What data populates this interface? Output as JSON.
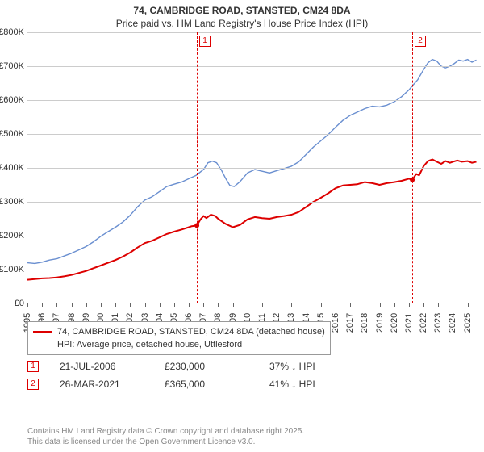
{
  "title_line1": "74, CAMBRIDGE ROAD, STANSTED, CM24 8DA",
  "title_line2": "Price paid vs. HM Land Registry's House Price Index (HPI)",
  "y_axis": {
    "min": 0,
    "max": 800000,
    "ticks": [
      0,
      100000,
      200000,
      300000,
      400000,
      500000,
      600000,
      700000,
      800000
    ],
    "labels": [
      "£0",
      "£100K",
      "£200K",
      "£300K",
      "£400K",
      "£500K",
      "£600K",
      "£700K",
      "£800K"
    ]
  },
  "x_axis": {
    "min": 1995.0,
    "max": 2025.9,
    "ticks": [
      1995,
      1996,
      1997,
      1998,
      1999,
      2000,
      2001,
      2002,
      2003,
      2004,
      2005,
      2006,
      2007,
      2008,
      2009,
      2010,
      2011,
      2012,
      2013,
      2014,
      2015,
      2016,
      2017,
      2018,
      2019,
      2020,
      2021,
      2022,
      2023,
      2024,
      2025
    ]
  },
  "grid_color": "#cccccc",
  "axis_color": "#666666",
  "series": {
    "property": {
      "label": "74, CAMBRIDGE ROAD, STANSTED, CM24 8DA (detached house)",
      "color": "#dd0000",
      "width": 2,
      "points": [
        [
          1995.0,
          70000
        ],
        [
          1995.5,
          72000
        ],
        [
          1996.0,
          74000
        ],
        [
          1996.5,
          75000
        ],
        [
          1997.0,
          77000
        ],
        [
          1997.5,
          80000
        ],
        [
          1998.0,
          84000
        ],
        [
          1998.5,
          90000
        ],
        [
          1999.0,
          96000
        ],
        [
          1999.5,
          104000
        ],
        [
          2000.0,
          112000
        ],
        [
          2000.5,
          120000
        ],
        [
          2001.0,
          128000
        ],
        [
          2001.5,
          138000
        ],
        [
          2002.0,
          150000
        ],
        [
          2002.5,
          165000
        ],
        [
          2003.0,
          178000
        ],
        [
          2003.5,
          185000
        ],
        [
          2004.0,
          195000
        ],
        [
          2004.5,
          205000
        ],
        [
          2005.0,
          212000
        ],
        [
          2005.5,
          218000
        ],
        [
          2006.0,
          225000
        ],
        [
          2006.2,
          228000
        ],
        [
          2006.55,
          230000
        ],
        [
          2006.8,
          248000
        ],
        [
          2007.0,
          258000
        ],
        [
          2007.2,
          252000
        ],
        [
          2007.5,
          262000
        ],
        [
          2007.8,
          258000
        ],
        [
          2008.0,
          250000
        ],
        [
          2008.5,
          235000
        ],
        [
          2009.0,
          225000
        ],
        [
          2009.5,
          232000
        ],
        [
          2010.0,
          248000
        ],
        [
          2010.5,
          255000
        ],
        [
          2011.0,
          252000
        ],
        [
          2011.5,
          250000
        ],
        [
          2012.0,
          255000
        ],
        [
          2012.5,
          258000
        ],
        [
          2013.0,
          262000
        ],
        [
          2013.5,
          270000
        ],
        [
          2014.0,
          285000
        ],
        [
          2014.5,
          300000
        ],
        [
          2015.0,
          312000
        ],
        [
          2015.5,
          325000
        ],
        [
          2016.0,
          340000
        ],
        [
          2016.5,
          348000
        ],
        [
          2017.0,
          350000
        ],
        [
          2017.5,
          352000
        ],
        [
          2018.0,
          358000
        ],
        [
          2018.5,
          355000
        ],
        [
          2019.0,
          350000
        ],
        [
          2019.5,
          355000
        ],
        [
          2020.0,
          358000
        ],
        [
          2020.5,
          362000
        ],
        [
          2021.0,
          368000
        ],
        [
          2021.23,
          365000
        ],
        [
          2021.5,
          382000
        ],
        [
          2021.7,
          378000
        ],
        [
          2022.0,
          405000
        ],
        [
          2022.3,
          420000
        ],
        [
          2022.6,
          425000
        ],
        [
          2022.9,
          418000
        ],
        [
          2023.2,
          412000
        ],
        [
          2023.5,
          420000
        ],
        [
          2023.8,
          415000
        ],
        [
          2024.0,
          418000
        ],
        [
          2024.3,
          422000
        ],
        [
          2024.6,
          418000
        ],
        [
          2025.0,
          420000
        ],
        [
          2025.3,
          415000
        ],
        [
          2025.6,
          418000
        ]
      ]
    },
    "hpi": {
      "label": "HPI: Average price, detached house, Uttlesford",
      "color": "#6a8fd0",
      "width": 1.4,
      "points": [
        [
          1995.0,
          120000
        ],
        [
          1995.5,
          118000
        ],
        [
          1996.0,
          122000
        ],
        [
          1996.5,
          128000
        ],
        [
          1997.0,
          132000
        ],
        [
          1997.5,
          140000
        ],
        [
          1998.0,
          148000
        ],
        [
          1998.5,
          158000
        ],
        [
          1999.0,
          168000
        ],
        [
          1999.5,
          182000
        ],
        [
          2000.0,
          198000
        ],
        [
          2000.5,
          212000
        ],
        [
          2001.0,
          225000
        ],
        [
          2001.5,
          240000
        ],
        [
          2002.0,
          260000
        ],
        [
          2002.5,
          285000
        ],
        [
          2003.0,
          305000
        ],
        [
          2003.5,
          315000
        ],
        [
          2004.0,
          330000
        ],
        [
          2004.5,
          345000
        ],
        [
          2005.0,
          352000
        ],
        [
          2005.5,
          358000
        ],
        [
          2006.0,
          368000
        ],
        [
          2006.5,
          378000
        ],
        [
          2007.0,
          395000
        ],
        [
          2007.3,
          415000
        ],
        [
          2007.6,
          420000
        ],
        [
          2007.9,
          415000
        ],
        [
          2008.2,
          395000
        ],
        [
          2008.5,
          370000
        ],
        [
          2008.8,
          348000
        ],
        [
          2009.1,
          345000
        ],
        [
          2009.5,
          360000
        ],
        [
          2010.0,
          385000
        ],
        [
          2010.5,
          395000
        ],
        [
          2011.0,
          390000
        ],
        [
          2011.5,
          385000
        ],
        [
          2012.0,
          392000
        ],
        [
          2012.5,
          398000
        ],
        [
          2013.0,
          405000
        ],
        [
          2013.5,
          418000
        ],
        [
          2014.0,
          440000
        ],
        [
          2014.5,
          462000
        ],
        [
          2015.0,
          480000
        ],
        [
          2015.5,
          498000
        ],
        [
          2016.0,
          520000
        ],
        [
          2016.5,
          540000
        ],
        [
          2017.0,
          555000
        ],
        [
          2017.5,
          565000
        ],
        [
          2018.0,
          575000
        ],
        [
          2018.5,
          582000
        ],
        [
          2019.0,
          580000
        ],
        [
          2019.5,
          585000
        ],
        [
          2020.0,
          595000
        ],
        [
          2020.5,
          610000
        ],
        [
          2021.0,
          630000
        ],
        [
          2021.3,
          645000
        ],
        [
          2021.6,
          660000
        ],
        [
          2022.0,
          690000
        ],
        [
          2022.3,
          710000
        ],
        [
          2022.6,
          720000
        ],
        [
          2022.9,
          715000
        ],
        [
          2023.2,
          700000
        ],
        [
          2023.5,
          695000
        ],
        [
          2023.8,
          700000
        ],
        [
          2024.1,
          708000
        ],
        [
          2024.4,
          718000
        ],
        [
          2024.7,
          715000
        ],
        [
          2025.0,
          720000
        ],
        [
          2025.3,
          712000
        ],
        [
          2025.6,
          718000
        ]
      ]
    }
  },
  "markers": [
    {
      "n": "1",
      "x": 2006.55,
      "color": "#dd0000",
      "date": "21-JUL-2006",
      "price": "£230,000",
      "vs_hpi": "37% ↓ HPI"
    },
    {
      "n": "2",
      "x": 2021.23,
      "color": "#dd0000",
      "date": "26-MAR-2021",
      "price": "£365,000",
      "vs_hpi": "41% ↓ HPI"
    }
  ],
  "attribution_line1": "Contains HM Land Registry data © Crown copyright and database right 2025.",
  "attribution_line2": "This data is licensed under the Open Government Licence v3.0."
}
